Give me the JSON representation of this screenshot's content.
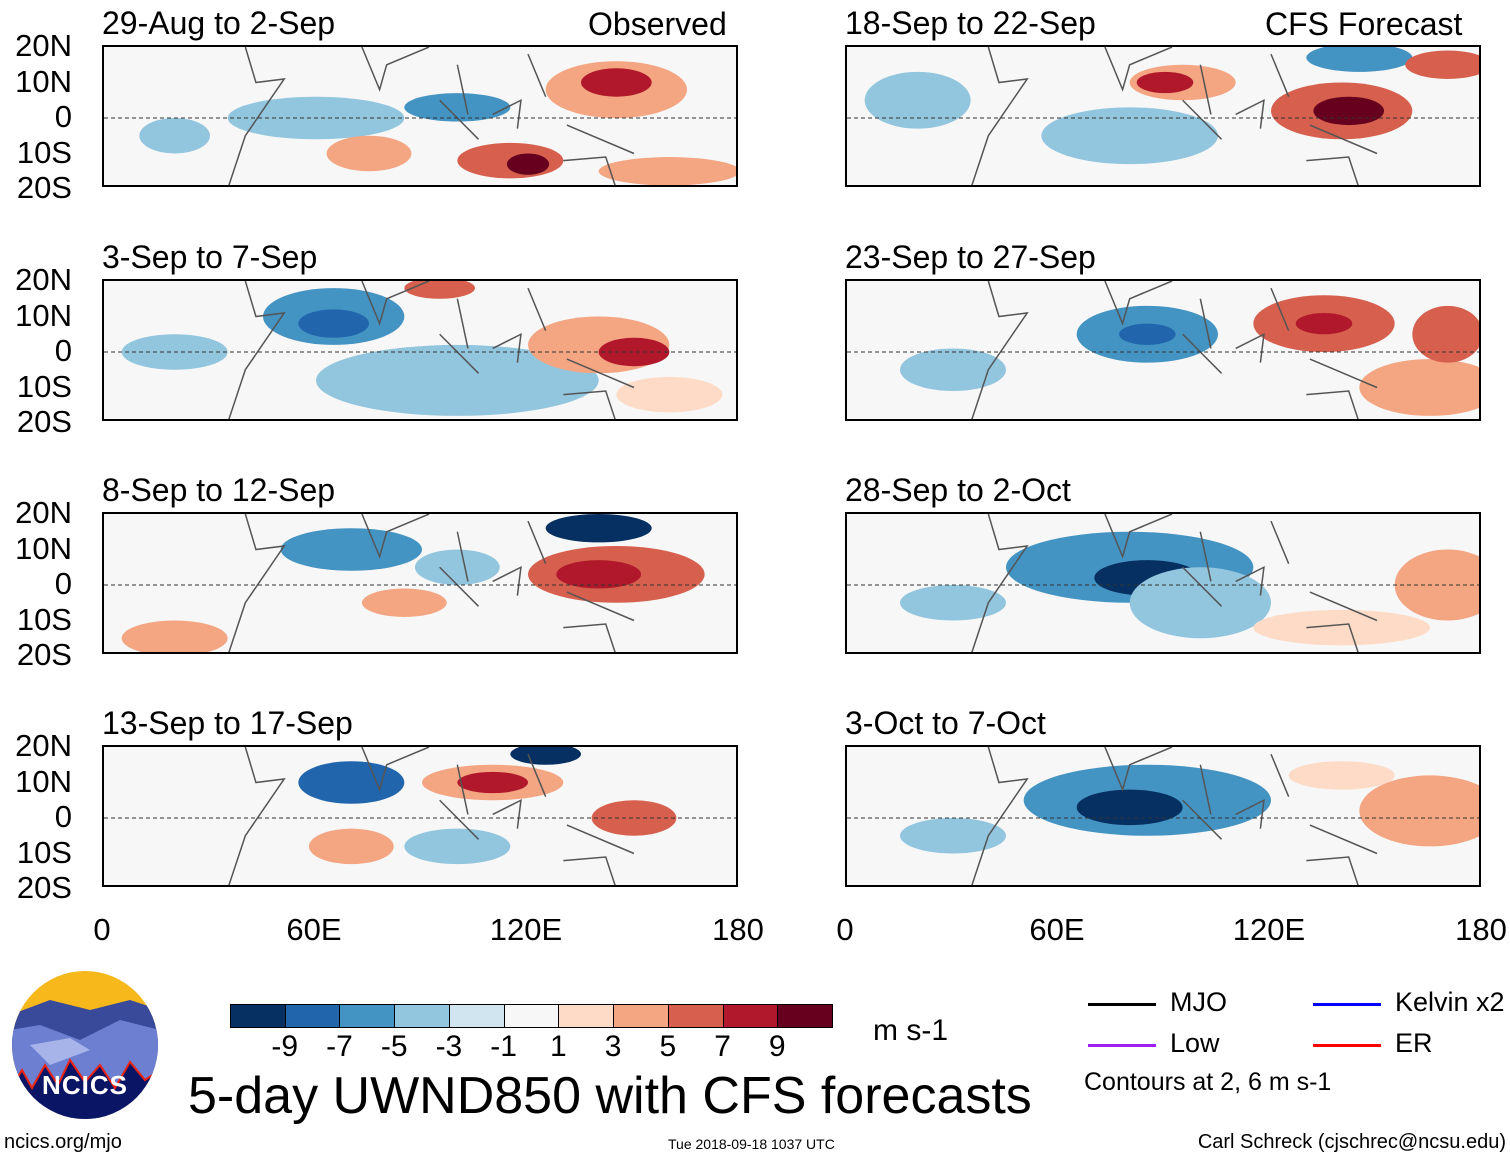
{
  "labels": {
    "observed": "Observed",
    "forecast": "CFS Forecast"
  },
  "panels": [
    {
      "title": "29-Aug to 2-Sep",
      "group": "observed"
    },
    {
      "title": "3-Sep to 7-Sep",
      "group": "observed"
    },
    {
      "title": "8-Sep to 12-Sep",
      "group": "observed"
    },
    {
      "title": "13-Sep to 17-Sep",
      "group": "observed"
    },
    {
      "title": "18-Sep to 22-Sep",
      "group": "forecast"
    },
    {
      "title": "23-Sep to 27-Sep",
      "group": "forecast"
    },
    {
      "title": "28-Sep to 2-Oct",
      "group": "forecast"
    },
    {
      "title": "3-Oct to 7-Oct",
      "group": "forecast"
    }
  ],
  "lat_ticks": [
    "20N",
    "10N",
    "0",
    "10S",
    "20S"
  ],
  "lon_ticks": [
    "0",
    "60E",
    "120E",
    "180"
  ],
  "colorbar": {
    "colors": [
      "#053061",
      "#2166ac",
      "#4393c3",
      "#92c5de",
      "#d1e5f0",
      "#f7f7f7",
      "#fddbc7",
      "#f4a582",
      "#d6604d",
      "#b2182b",
      "#67001f"
    ],
    "labels": [
      "-9",
      "-7",
      "-5",
      "-3",
      "-1",
      "1",
      "3",
      "5",
      "7",
      "9"
    ],
    "units": "m s-1"
  },
  "legend": {
    "items": [
      {
        "label": "MJO",
        "color": "#000000"
      },
      {
        "label": "Kelvin x2",
        "color": "#0000ff"
      },
      {
        "label": "Low",
        "color": "#a020f0"
      },
      {
        "label": "ER",
        "color": "#ff0000"
      }
    ],
    "note": "Contours at 2, 6 m s-1"
  },
  "logo_text": "NCICS",
  "title": "5-day UWND850 with CFS forecasts",
  "footer": {
    "url": "ncics.org/mjo",
    "timestamp": "Tue 2018-09-18 1037 UTC",
    "author": "Carl Schreck (cjschrec@ncsu.edu)"
  }
}
